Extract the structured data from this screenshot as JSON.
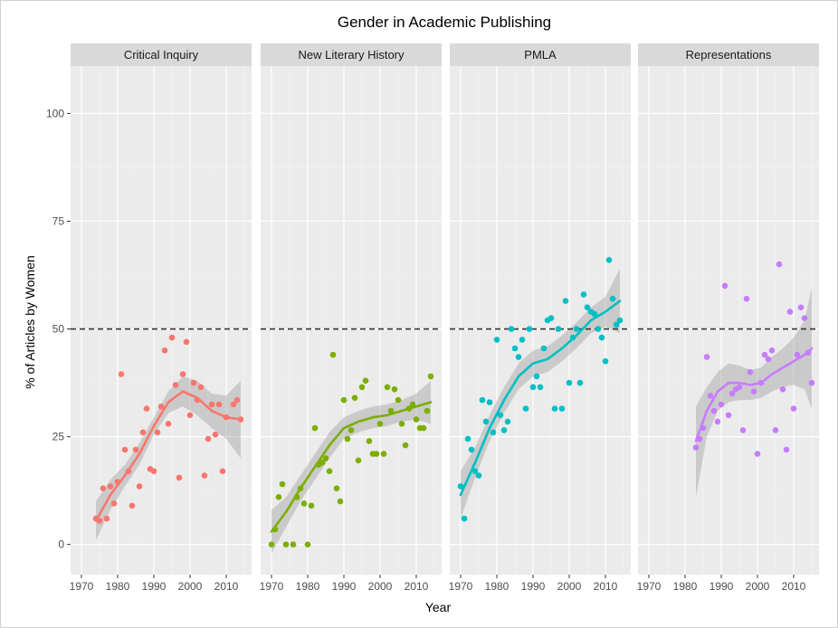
{
  "chart_data": {
    "type": "scatter",
    "title": "Gender in Academic Publishing",
    "xlabel": "Year",
    "ylabel": "% of Articles by Women",
    "xlim": [
      1967,
      2017
    ],
    "ylim": [
      -7,
      111
    ],
    "xticks": [
      1970,
      1980,
      1990,
      2000,
      2010
    ],
    "yticks": [
      0,
      25,
      50,
      75,
      100
    ],
    "reference_line": {
      "y": 50,
      "style": "dashed"
    },
    "grid": true,
    "legend": "none",
    "panels": [
      {
        "name": "Critical Inquiry",
        "color": "#f8766d",
        "points": [
          [
            1974,
            6
          ],
          [
            1975,
            5.5
          ],
          [
            1976,
            13
          ],
          [
            1977,
            6
          ],
          [
            1978,
            13.5
          ],
          [
            1979,
            9.5
          ],
          [
            1980,
            14.5
          ],
          [
            1981,
            39.5
          ],
          [
            1982,
            22
          ],
          [
            1983,
            17
          ],
          [
            1984,
            9
          ],
          [
            1985,
            22
          ],
          [
            1986,
            13.5
          ],
          [
            1987,
            26
          ],
          [
            1988,
            31.5
          ],
          [
            1989,
            17.5
          ],
          [
            1990,
            17
          ],
          [
            1991,
            26
          ],
          [
            1992,
            32
          ],
          [
            1993,
            45
          ],
          [
            1994,
            28
          ],
          [
            1995,
            48
          ],
          [
            1996,
            37
          ],
          [
            1997,
            15.5
          ],
          [
            1998,
            39.5
          ],
          [
            1999,
            47
          ],
          [
            2000,
            30
          ],
          [
            2001,
            37.5
          ],
          [
            2002,
            33.5
          ],
          [
            2003,
            36.5
          ],
          [
            2004,
            16
          ],
          [
            2005,
            24.5
          ],
          [
            2006,
            32.5
          ],
          [
            2007,
            25.5
          ],
          [
            2008,
            32.5
          ],
          [
            2009,
            17
          ],
          [
            2010,
            29.5
          ],
          [
            2012,
            32.5
          ],
          [
            2013,
            33.5
          ],
          [
            2014,
            29
          ]
        ],
        "trend": [
          [
            1974,
            5.5
          ],
          [
            1978,
            11.5
          ],
          [
            1982,
            16
          ],
          [
            1986,
            21
          ],
          [
            1990,
            27.5
          ],
          [
            1994,
            33
          ],
          [
            1998,
            35.5
          ],
          [
            2002,
            34
          ],
          [
            2006,
            31
          ],
          [
            2010,
            29.5
          ],
          [
            2014,
            29
          ]
        ],
        "band_upper": [
          [
            1974,
            10
          ],
          [
            1978,
            15
          ],
          [
            1982,
            18.5
          ],
          [
            1986,
            23.5
          ],
          [
            1990,
            29.5
          ],
          [
            1994,
            35.5
          ],
          [
            1998,
            39
          ],
          [
            2002,
            38
          ],
          [
            2006,
            35
          ],
          [
            2010,
            34.5
          ],
          [
            2014,
            38
          ]
        ],
        "band_lower": [
          [
            1974,
            1
          ],
          [
            1978,
            8
          ],
          [
            1982,
            13.5
          ],
          [
            1986,
            18.5
          ],
          [
            1990,
            25.5
          ],
          [
            1994,
            30.5
          ],
          [
            1998,
            32
          ],
          [
            2002,
            30
          ],
          [
            2006,
            27
          ],
          [
            2010,
            24.5
          ],
          [
            2014,
            20
          ]
        ]
      },
      {
        "name": "New Literary History",
        "color": "#7cae00",
        "points": [
          [
            1970,
            0
          ],
          [
            1971,
            3.5
          ],
          [
            1972,
            11
          ],
          [
            1973,
            14
          ],
          [
            1974,
            0
          ],
          [
            1976,
            0
          ],
          [
            1977,
            11
          ],
          [
            1978,
            13
          ],
          [
            1979,
            9.5
          ],
          [
            1980,
            0
          ],
          [
            1981,
            9
          ],
          [
            1982,
            27
          ],
          [
            1983,
            18.5
          ],
          [
            1984,
            19
          ],
          [
            1985,
            20
          ],
          [
            1986,
            17
          ],
          [
            1987,
            44
          ],
          [
            1988,
            13
          ],
          [
            1989,
            10
          ],
          [
            1990,
            33.5
          ],
          [
            1991,
            24.5
          ],
          [
            1992,
            26.5
          ],
          [
            1993,
            34
          ],
          [
            1994,
            19.5
          ],
          [
            1995,
            36.5
          ],
          [
            1996,
            38
          ],
          [
            1997,
            24
          ],
          [
            1998,
            21
          ],
          [
            1999,
            21
          ],
          [
            2000,
            28
          ],
          [
            2001,
            21
          ],
          [
            2002,
            36.5
          ],
          [
            2003,
            31
          ],
          [
            2004,
            36
          ],
          [
            2005,
            33.5
          ],
          [
            2006,
            28
          ],
          [
            2007,
            23
          ],
          [
            2008,
            31.5
          ],
          [
            2009,
            32.5
          ],
          [
            2010,
            29
          ],
          [
            2011,
            27
          ],
          [
            2012,
            27
          ],
          [
            2013,
            31
          ],
          [
            2014,
            39
          ]
        ],
        "trend": [
          [
            1970,
            3
          ],
          [
            1974,
            7.5
          ],
          [
            1978,
            13
          ],
          [
            1982,
            18
          ],
          [
            1986,
            23
          ],
          [
            1990,
            27
          ],
          [
            1994,
            28.5
          ],
          [
            1998,
            29.5
          ],
          [
            2002,
            30
          ],
          [
            2006,
            31
          ],
          [
            2010,
            32
          ],
          [
            2014,
            33
          ]
        ],
        "band_upper": [
          [
            1970,
            8
          ],
          [
            1974,
            11
          ],
          [
            1978,
            16
          ],
          [
            1982,
            21
          ],
          [
            1986,
            26
          ],
          [
            1990,
            29.5
          ],
          [
            1994,
            31
          ],
          [
            1998,
            32
          ],
          [
            2002,
            32.5
          ],
          [
            2006,
            33.5
          ],
          [
            2010,
            35
          ],
          [
            2014,
            38
          ]
        ],
        "band_lower": [
          [
            1970,
            -2
          ],
          [
            1974,
            4
          ],
          [
            1978,
            10
          ],
          [
            1982,
            15
          ],
          [
            1986,
            20
          ],
          [
            1990,
            24.5
          ],
          [
            1994,
            26
          ],
          [
            1998,
            27
          ],
          [
            2002,
            27.5
          ],
          [
            2006,
            28.5
          ],
          [
            2010,
            29
          ],
          [
            2014,
            28
          ]
        ]
      },
      {
        "name": "PMLA",
        "color": "#00bfc4",
        "points": [
          [
            1970,
            13.5
          ],
          [
            1971,
            6
          ],
          [
            1972,
            24.5
          ],
          [
            1973,
            22
          ],
          [
            1974,
            17
          ],
          [
            1975,
            16
          ],
          [
            1976,
            33.5
          ],
          [
            1977,
            28.5
          ],
          [
            1978,
            33
          ],
          [
            1979,
            26
          ],
          [
            1980,
            47.5
          ],
          [
            1981,
            30
          ],
          [
            1982,
            26.5
          ],
          [
            1983,
            28.5
          ],
          [
            1984,
            50
          ],
          [
            1985,
            45.5
          ],
          [
            1986,
            43.5
          ],
          [
            1987,
            47.5
          ],
          [
            1988,
            31.5
          ],
          [
            1989,
            50
          ],
          [
            1990,
            36.5
          ],
          [
            1991,
            39
          ],
          [
            1992,
            36.5
          ],
          [
            1993,
            45.5
          ],
          [
            1994,
            52
          ],
          [
            1995,
            52.5
          ],
          [
            1996,
            31.5
          ],
          [
            1997,
            50
          ],
          [
            1998,
            31.5
          ],
          [
            1999,
            56.5
          ],
          [
            2000,
            37.5
          ],
          [
            2001,
            48
          ],
          [
            2002,
            50
          ],
          [
            2003,
            37.5
          ],
          [
            2004,
            58
          ],
          [
            2005,
            55
          ],
          [
            2006,
            54
          ],
          [
            2007,
            53.5
          ],
          [
            2008,
            50
          ],
          [
            2009,
            48
          ],
          [
            2010,
            42.5
          ],
          [
            2011,
            66
          ],
          [
            2012,
            57
          ],
          [
            2013,
            51
          ],
          [
            2014,
            52
          ]
        ],
        "trend": [
          [
            1970,
            11.5
          ],
          [
            1974,
            19
          ],
          [
            1978,
            27
          ],
          [
            1982,
            33.5
          ],
          [
            1986,
            39
          ],
          [
            1990,
            42
          ],
          [
            1994,
            43
          ],
          [
            1998,
            45.5
          ],
          [
            2002,
            48.5
          ],
          [
            2006,
            52
          ],
          [
            2010,
            54
          ],
          [
            2014,
            56.5
          ]
        ],
        "band_upper": [
          [
            1970,
            17
          ],
          [
            1974,
            22.5
          ],
          [
            1978,
            30
          ],
          [
            1982,
            36.5
          ],
          [
            1986,
            42
          ],
          [
            1990,
            45
          ],
          [
            1994,
            46
          ],
          [
            1998,
            48.5
          ],
          [
            2002,
            51.5
          ],
          [
            2006,
            55
          ],
          [
            2010,
            57.5
          ],
          [
            2014,
            64
          ]
        ],
        "band_lower": [
          [
            1970,
            6
          ],
          [
            1974,
            15.5
          ],
          [
            1978,
            24
          ],
          [
            1982,
            30.5
          ],
          [
            1986,
            36
          ],
          [
            1990,
            39
          ],
          [
            1994,
            40
          ],
          [
            1998,
            42.5
          ],
          [
            2002,
            45.5
          ],
          [
            2006,
            49
          ],
          [
            2010,
            50.5
          ],
          [
            2014,
            49
          ]
        ]
      },
      {
        "name": "Representations",
        "color": "#c77cff",
        "points": [
          [
            1983,
            22.5
          ],
          [
            1984,
            24.5
          ],
          [
            1985,
            27
          ],
          [
            1986,
            43.5
          ],
          [
            1987,
            34.5
          ],
          [
            1988,
            31
          ],
          [
            1989,
            28.5
          ],
          [
            1990,
            32.5
          ],
          [
            1991,
            60
          ],
          [
            1992,
            30
          ],
          [
            1993,
            35
          ],
          [
            1994,
            36
          ],
          [
            1995,
            36.5
          ],
          [
            1996,
            26.5
          ],
          [
            1997,
            57
          ],
          [
            1998,
            40
          ],
          [
            1999,
            35.5
          ],
          [
            2000,
            21
          ],
          [
            2001,
            37.5
          ],
          [
            2002,
            44
          ],
          [
            2003,
            43
          ],
          [
            2004,
            45
          ],
          [
            2005,
            26.5
          ],
          [
            2006,
            65
          ],
          [
            2007,
            36
          ],
          [
            2008,
            22
          ],
          [
            2009,
            54
          ],
          [
            2010,
            31.5
          ],
          [
            2011,
            44
          ],
          [
            2012,
            55
          ],
          [
            2013,
            52.5
          ],
          [
            2014,
            44.5
          ],
          [
            2015,
            37.5
          ]
        ],
        "trend": [
          [
            1983,
            24
          ],
          [
            1986,
            31
          ],
          [
            1989,
            35.5
          ],
          [
            1992,
            37.5
          ],
          [
            1995,
            37.5
          ],
          [
            1998,
            37
          ],
          [
            2001,
            37.5
          ],
          [
            2004,
            39.5
          ],
          [
            2007,
            41
          ],
          [
            2010,
            42.5
          ],
          [
            2013,
            44
          ],
          [
            2015,
            45.5
          ]
        ],
        "band_upper": [
          [
            1983,
            32
          ],
          [
            1986,
            36.5
          ],
          [
            1989,
            40
          ],
          [
            1992,
            42
          ],
          [
            1995,
            41.5
          ],
          [
            1998,
            40.5
          ],
          [
            2001,
            41
          ],
          [
            2004,
            43.5
          ],
          [
            2007,
            45.5
          ],
          [
            2010,
            48
          ],
          [
            2013,
            52
          ],
          [
            2015,
            59.5
          ]
        ],
        "band_lower": [
          [
            1983,
            11
          ],
          [
            1986,
            25
          ],
          [
            1989,
            31
          ],
          [
            1992,
            33
          ],
          [
            1995,
            33.5
          ],
          [
            1998,
            33.5
          ],
          [
            2001,
            34
          ],
          [
            2004,
            35.5
          ],
          [
            2007,
            36.5
          ],
          [
            2010,
            37
          ],
          [
            2013,
            36
          ],
          [
            2015,
            31.5
          ]
        ]
      }
    ]
  }
}
